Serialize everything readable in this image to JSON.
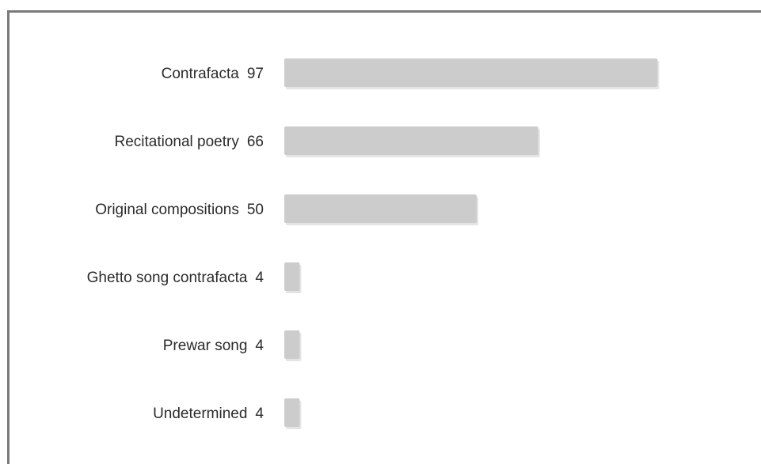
{
  "chart_data": {
    "type": "bar",
    "orientation": "horizontal",
    "categories": [
      "Contrafacta",
      "Recitational poetry",
      "Original compositions",
      "Ghetto song contrafacta",
      "Prewar song",
      "Undetermined"
    ],
    "values": [
      97,
      66,
      50,
      4,
      4,
      4
    ],
    "value_labels": [
      "97",
      "66",
      "50",
      "4",
      "4",
      "4"
    ],
    "title": "",
    "xlabel": "",
    "ylabel": "",
    "xlim": [
      0,
      100
    ],
    "grid": false,
    "legend": "none",
    "bar_color": "#cccccc"
  }
}
